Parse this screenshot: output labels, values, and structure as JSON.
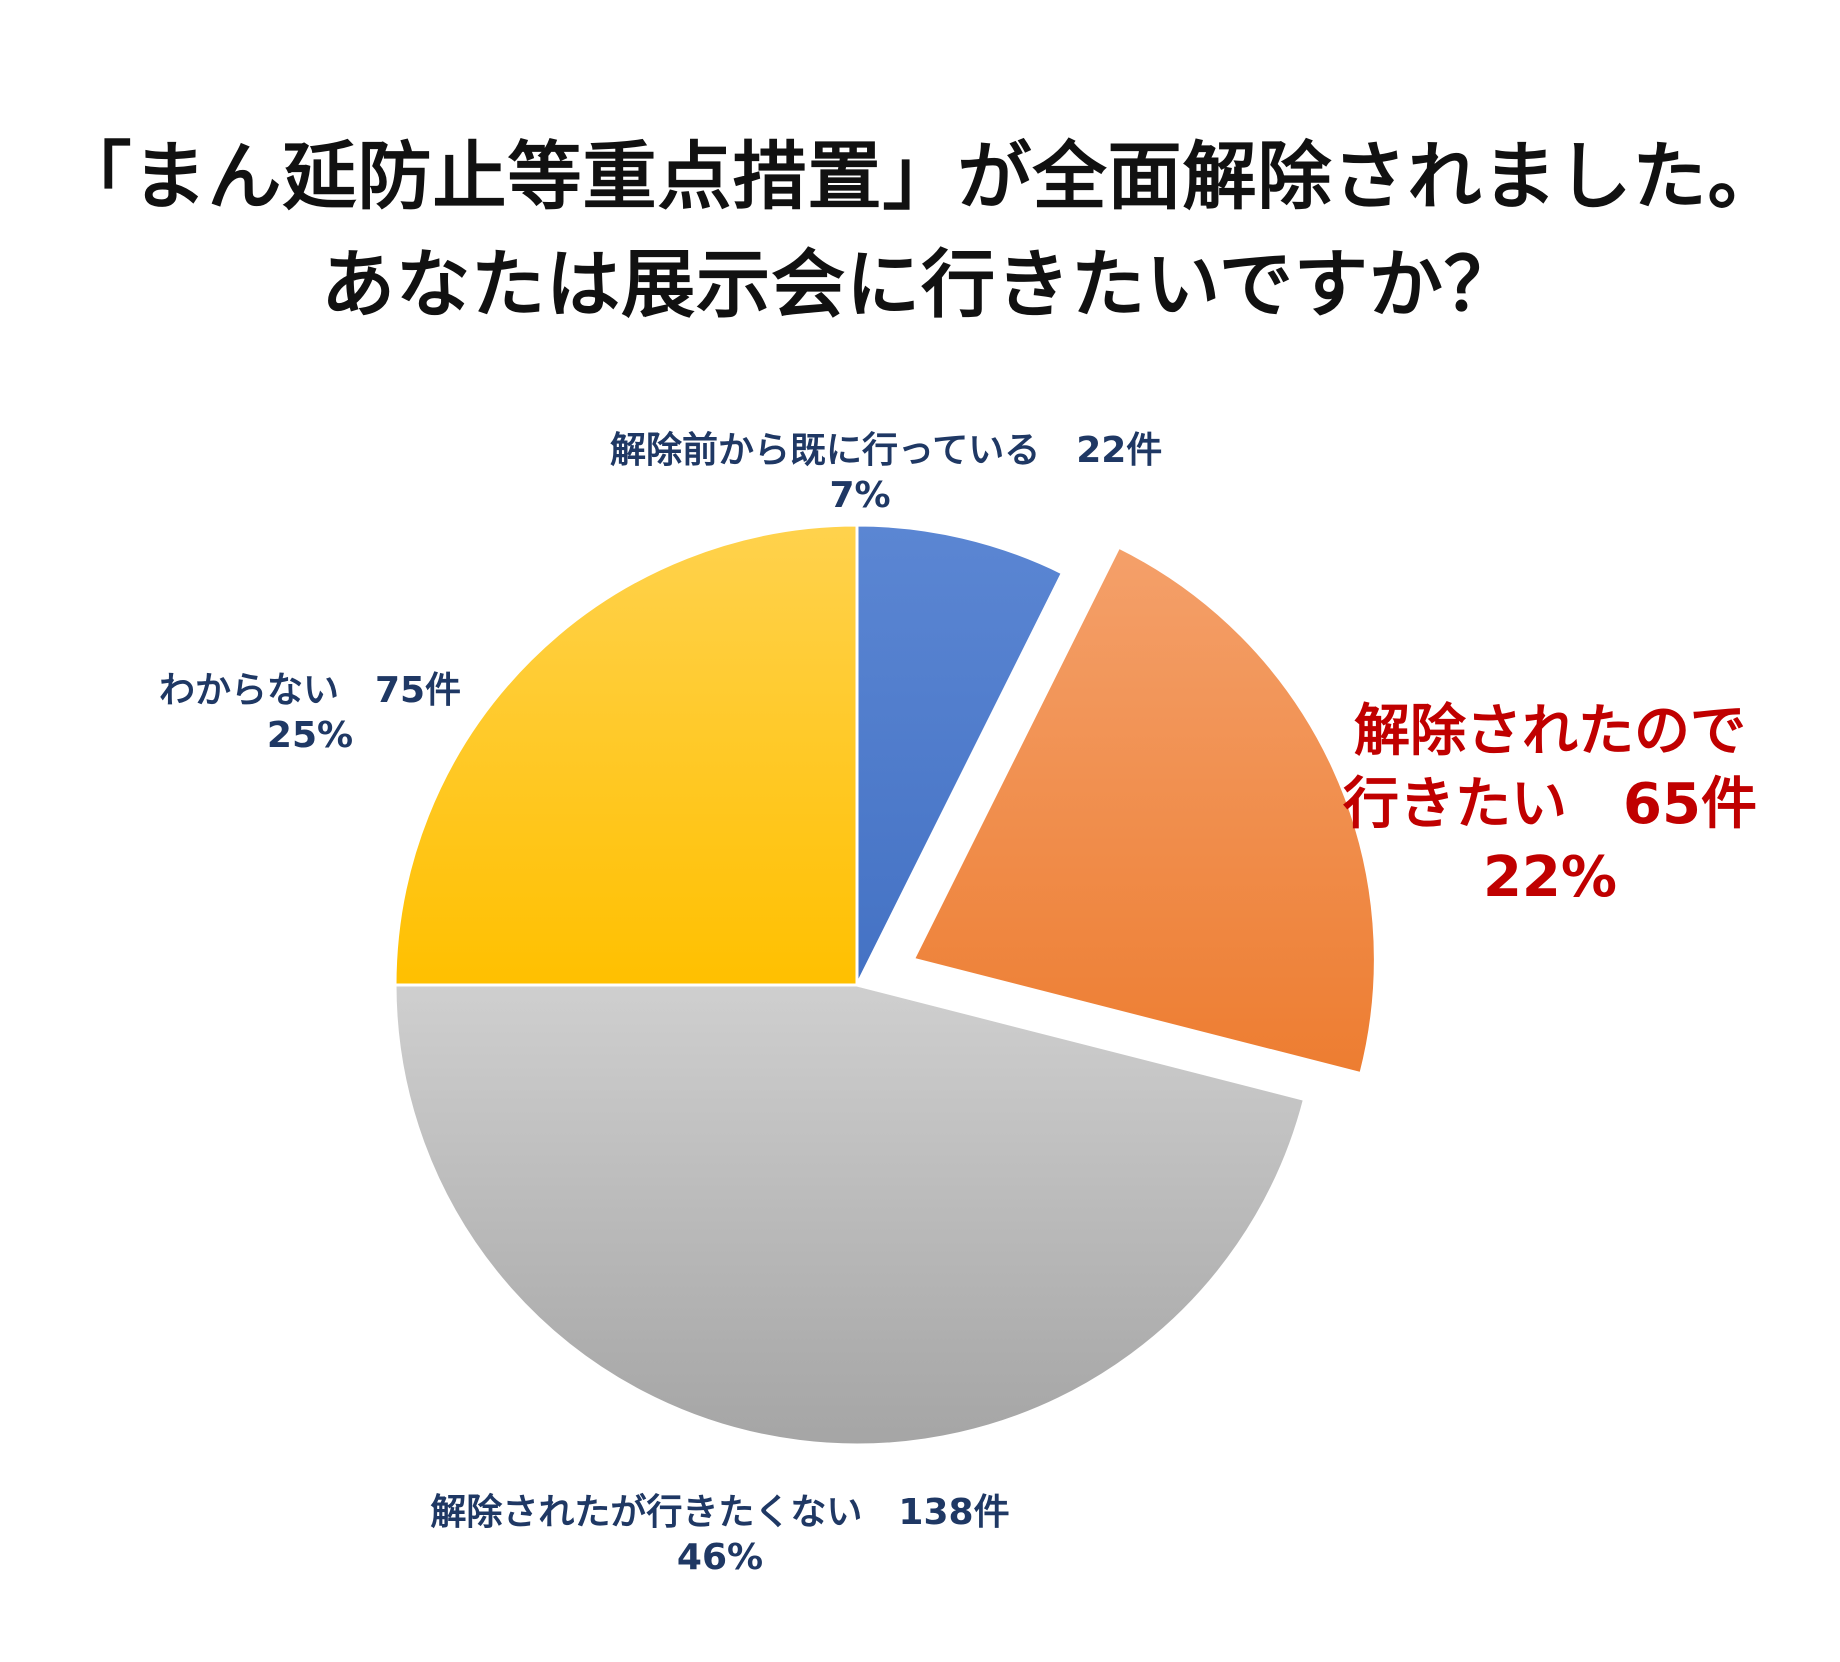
{
  "chart_data": {
    "type": "pie",
    "title_lines": [
      "「まん延防止等重点措置」が全面解除されました。",
      "あなたは展示会に行きたいですか？"
    ],
    "slices": [
      {
        "label_lines": [
          "解除前から既に行っている　22件",
          "7%"
        ],
        "count": 22,
        "percent": 7,
        "color": "#4472c4",
        "color_light": "#5b86d3",
        "exploded": false
      },
      {
        "label_lines": [
          "解除されたので",
          "行きたい　65件",
          "22%"
        ],
        "count": 65,
        "percent": 22,
        "color": "#ed7d31",
        "color_light": "#f4a06a",
        "exploded": true
      },
      {
        "label_lines": [
          "解除されたが行きたくない　138件",
          "46%"
        ],
        "count": 138,
        "percent": 46,
        "color": "#a5a5a5",
        "color_light": "#cfcfcf",
        "exploded": false
      },
      {
        "label_lines": [
          "わからない　75件",
          "25%"
        ],
        "count": 75,
        "percent": 25,
        "color": "#ffc000",
        "color_light": "#ffd24d",
        "exploded": false
      }
    ],
    "start_angle": "12 o'clock",
    "direction": "clockwise",
    "legend": "none"
  }
}
